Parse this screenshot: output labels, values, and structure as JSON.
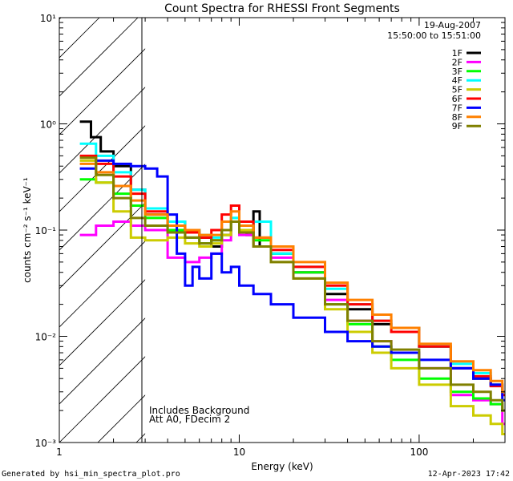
{
  "chart_data": {
    "type": "line",
    "title": "Count Spectra for RHESSI Front Segments",
    "xlabel": "Energy (keV)",
    "ylabel": "counts cm⁻² s⁻¹ keV⁻¹",
    "xscale": "log",
    "yscale": "log",
    "xlim": [
      1,
      300
    ],
    "ylim": [
      0.001,
      10
    ],
    "x_ticks": [
      {
        "value": 1,
        "label": "1"
      },
      {
        "value": 10,
        "label": "10"
      },
      {
        "value": 100,
        "label": "100"
      }
    ],
    "y_ticks": [
      {
        "value": 0.001,
        "label": "10⁻³"
      },
      {
        "value": 0.01,
        "label": "10⁻²"
      },
      {
        "value": 0.1,
        "label": "10⁻¹"
      },
      {
        "value": 1,
        "label": "10⁰"
      },
      {
        "value": 10,
        "label": "10¹"
      }
    ],
    "hatched_region_x": [
      1,
      3
    ],
    "annotations": {
      "date": "19-Aug-2007",
      "time_range": "15:50:00 to 15:51:00",
      "note_line1": "Includes Background",
      "note_line2": "Att A0, FDecim 2"
    },
    "legend_position": "top-right",
    "series": [
      {
        "name": "1F",
        "color": "#000000",
        "x": [
          1.3,
          1.5,
          1.7,
          2.0,
          2.5,
          3.0,
          4.0,
          5.0,
          6.0,
          7.0,
          8.0,
          9.0,
          10.0,
          11.0,
          12.0,
          13.0,
          15.0,
          20.0,
          30.0,
          40.0,
          55.0,
          70.0,
          100.0,
          150.0,
          200.0,
          250.0,
          290.0
        ],
        "y": [
          1.05,
          0.75,
          0.55,
          0.4,
          0.24,
          0.14,
          0.12,
          0.1,
          0.085,
          0.07,
          0.09,
          0.12,
          0.1,
          0.09,
          0.15,
          0.07,
          0.06,
          0.04,
          0.025,
          0.018,
          0.013,
          0.012,
          0.008,
          0.005,
          0.004,
          0.0035,
          0.003
        ]
      },
      {
        "name": "2F",
        "color": "#ff00ff",
        "x": [
          1.3,
          1.6,
          2.0,
          2.5,
          3.0,
          4.0,
          5.0,
          6.0,
          7.0,
          8.0,
          9.0,
          10.0,
          12.0,
          15.0,
          20.0,
          30.0,
          40.0,
          55.0,
          70.0,
          100.0,
          150.0,
          200.0,
          250.0,
          290.0
        ],
        "y": [
          0.09,
          0.11,
          0.12,
          0.11,
          0.1,
          0.055,
          0.05,
          0.055,
          0.06,
          0.08,
          0.12,
          0.09,
          0.07,
          0.055,
          0.04,
          0.022,
          0.014,
          0.009,
          0.007,
          0.005,
          0.0028,
          0.0025,
          0.0023,
          0.0015
        ]
      },
      {
        "name": "3F",
        "color": "#00ff00",
        "x": [
          1.3,
          1.6,
          2.0,
          2.5,
          3.0,
          4.0,
          5.0,
          6.0,
          7.0,
          8.0,
          9.0,
          10.0,
          12.0,
          15.0,
          20.0,
          30.0,
          40.0,
          55.0,
          70.0,
          100.0,
          150.0,
          200.0,
          250.0,
          290.0
        ],
        "y": [
          0.3,
          0.28,
          0.22,
          0.17,
          0.13,
          0.1,
          0.085,
          0.075,
          0.08,
          0.1,
          0.13,
          0.11,
          0.08,
          0.06,
          0.04,
          0.02,
          0.013,
          0.008,
          0.006,
          0.004,
          0.003,
          0.0026,
          0.0023,
          0.002
        ]
      },
      {
        "name": "4F",
        "color": "#00ffff",
        "x": [
          1.3,
          1.6,
          2.0,
          2.5,
          3.0,
          4.0,
          5.0,
          6.0,
          7.0,
          8.0,
          9.0,
          10.0,
          12.0,
          15.0,
          20.0,
          30.0,
          40.0,
          55.0,
          70.0,
          100.0,
          150.0,
          200.0,
          250.0,
          290.0
        ],
        "y": [
          0.65,
          0.5,
          0.35,
          0.24,
          0.16,
          0.12,
          0.1,
          0.09,
          0.085,
          0.1,
          0.13,
          0.11,
          0.12,
          0.06,
          0.045,
          0.028,
          0.02,
          0.014,
          0.011,
          0.008,
          0.0055,
          0.0045,
          0.0035,
          0.003
        ]
      },
      {
        "name": "5F",
        "color": "#cccc00",
        "x": [
          1.3,
          1.6,
          2.0,
          2.5,
          3.0,
          4.0,
          5.0,
          6.0,
          7.0,
          8.0,
          9.0,
          10.0,
          12.0,
          15.0,
          20.0,
          30.0,
          40.0,
          55.0,
          70.0,
          100.0,
          150.0,
          200.0,
          250.0,
          290.0
        ],
        "y": [
          0.45,
          0.28,
          0.15,
          0.085,
          0.08,
          0.085,
          0.075,
          0.07,
          0.075,
          0.09,
          0.12,
          0.1,
          0.07,
          0.05,
          0.035,
          0.018,
          0.011,
          0.007,
          0.005,
          0.0035,
          0.0022,
          0.0018,
          0.0015,
          0.0012
        ]
      },
      {
        "name": "6F",
        "color": "#ff0000",
        "x": [
          1.3,
          1.6,
          2.0,
          2.5,
          3.0,
          4.0,
          5.0,
          6.0,
          7.0,
          8.0,
          9.0,
          10.0,
          12.0,
          15.0,
          20.0,
          30.0,
          40.0,
          55.0,
          70.0,
          100.0,
          150.0,
          200.0,
          250.0,
          290.0
        ],
        "y": [
          0.5,
          0.42,
          0.32,
          0.22,
          0.15,
          0.11,
          0.095,
          0.085,
          0.1,
          0.14,
          0.17,
          0.12,
          0.085,
          0.065,
          0.045,
          0.03,
          0.02,
          0.014,
          0.011,
          0.008,
          0.005,
          0.0042,
          0.0034,
          0.0028
        ]
      },
      {
        "name": "7F",
        "color": "#0000ff",
        "x": [
          1.3,
          1.6,
          2.0,
          2.5,
          3.0,
          3.5,
          4.0,
          4.5,
          5.0,
          5.5,
          6.0,
          7.0,
          8.0,
          9.0,
          10.0,
          12.0,
          15.0,
          20.0,
          30.0,
          40.0,
          55.0,
          70.0,
          100.0,
          150.0,
          200.0,
          250.0,
          290.0
        ],
        "y": [
          0.38,
          0.45,
          0.42,
          0.4,
          0.38,
          0.32,
          0.14,
          0.06,
          0.03,
          0.045,
          0.035,
          0.06,
          0.04,
          0.045,
          0.03,
          0.025,
          0.02,
          0.015,
          0.011,
          0.009,
          0.008,
          0.007,
          0.006,
          0.005,
          0.004,
          0.0035,
          0.0025
        ]
      },
      {
        "name": "8F",
        "color": "#ff8000",
        "x": [
          1.3,
          1.6,
          2.0,
          2.5,
          3.0,
          4.0,
          5.0,
          6.0,
          7.0,
          8.0,
          9.0,
          10.0,
          12.0,
          15.0,
          20.0,
          30.0,
          40.0,
          55.0,
          70.0,
          100.0,
          150.0,
          200.0,
          250.0,
          290.0
        ],
        "y": [
          0.42,
          0.35,
          0.26,
          0.19,
          0.14,
          0.11,
          0.1,
          0.09,
          0.09,
          0.12,
          0.15,
          0.11,
          0.085,
          0.07,
          0.05,
          0.032,
          0.022,
          0.016,
          0.012,
          0.0085,
          0.0058,
          0.0048,
          0.0038,
          0.003
        ]
      },
      {
        "name": "9F",
        "color": "#808000",
        "x": [
          1.3,
          1.6,
          2.0,
          2.5,
          3.0,
          4.0,
          5.0,
          6.0,
          7.0,
          8.0,
          9.0,
          10.0,
          12.0,
          15.0,
          20.0,
          30.0,
          40.0,
          55.0,
          70.0,
          100.0,
          150.0,
          200.0,
          250.0,
          290.0
        ],
        "y": [
          0.48,
          0.33,
          0.2,
          0.13,
          0.11,
          0.095,
          0.085,
          0.075,
          0.08,
          0.1,
          0.12,
          0.095,
          0.07,
          0.05,
          0.035,
          0.02,
          0.014,
          0.009,
          0.0075,
          0.005,
          0.0035,
          0.003,
          0.0025,
          0.002
        ]
      }
    ]
  },
  "footer": {
    "generated_by": "Generated by hsi_min_spectra_plot.pro",
    "timestamp": "12-Apr-2023 17:42"
  }
}
